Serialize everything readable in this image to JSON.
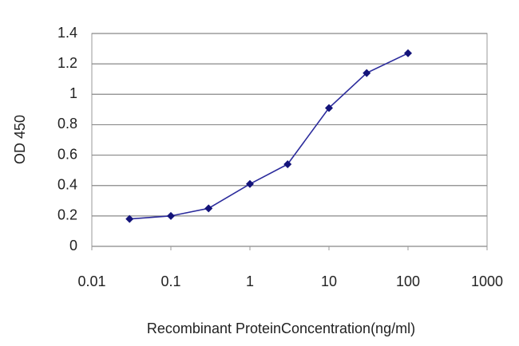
{
  "chart_data": {
    "type": "line",
    "x_label": "Recombinant ProteinConcentration(ng/ml)",
    "y_label": "OD 450",
    "x": [
      0.03,
      0.1,
      0.3,
      1,
      3,
      10,
      30,
      100
    ],
    "series": [
      {
        "color": "#2b2b9c",
        "values": [
          0.18,
          0.2,
          0.25,
          0.41,
          0.54,
          0.91,
          1.14,
          1.27
        ]
      }
    ],
    "xlim": [
      0.01,
      1000
    ],
    "xticks": [
      0.01,
      0.1,
      1,
      10,
      100,
      1000
    ],
    "xscale": "log",
    "ylim": [
      0,
      1.4
    ],
    "yticks": [
      0,
      0.2,
      0.4,
      0.6,
      0.8,
      1,
      1.2,
      1.4
    ],
    "grid": true
  }
}
